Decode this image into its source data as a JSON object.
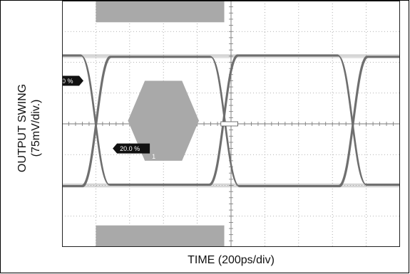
{
  "chart_data": {
    "type": "eye-diagram",
    "title": "",
    "xlabel": "TIME (200ps/div)",
    "ylabel_line1": "OUTPUT SWING",
    "ylabel_line2": "(75mV/div.)",
    "grid": true,
    "x_divisions": 10,
    "y_divisions": 8,
    "unit_interval_divs": 3.8,
    "first_crossing_div": 1.0,
    "eye_high_div": 1.8,
    "eye_low_div": 6.0,
    "mask_center_div": [
      3.0,
      3.9
    ],
    "marker_high": {
      "label": "0 %",
      "y_div": 2.6
    },
    "marker_low": {
      "label": "20.0 %",
      "y_div": 4.8
    },
    "mask_label": "1",
    "colors": {
      "trace": "#6f6f6f",
      "mask": "#a9a9a9",
      "grid": "#9a9a9a",
      "background": "#ffffff"
    }
  }
}
